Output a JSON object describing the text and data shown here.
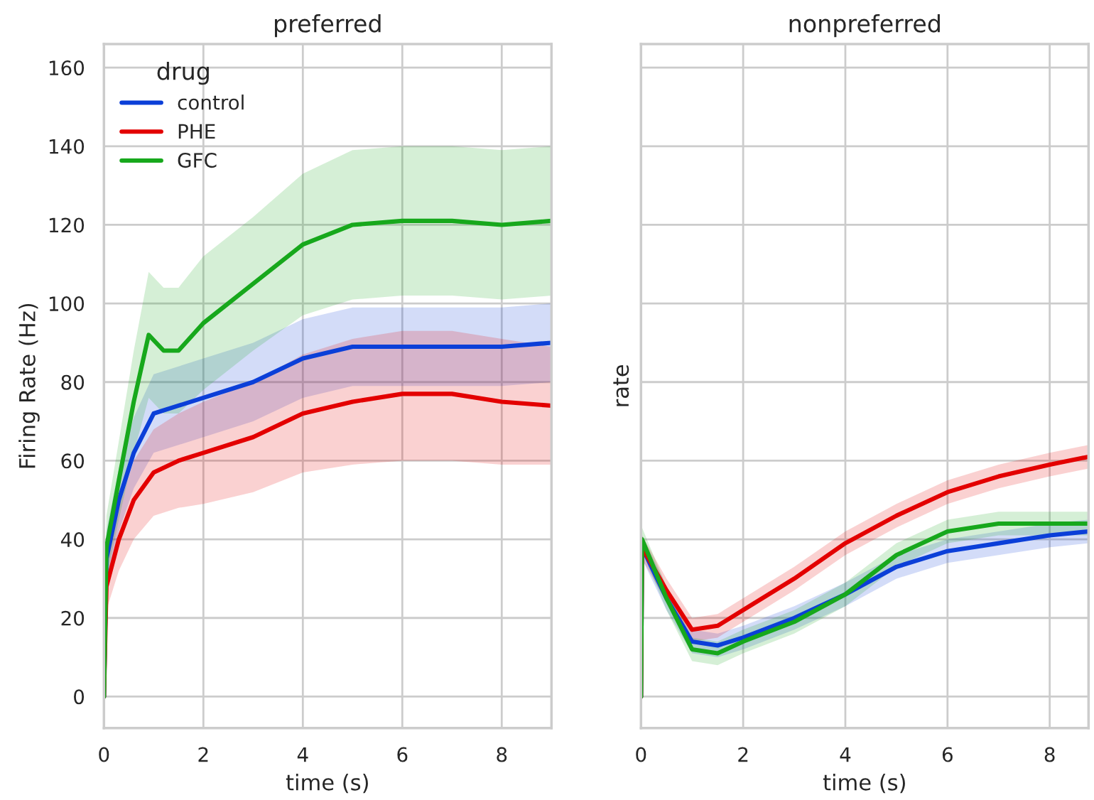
{
  "chart_data": [
    {
      "type": "line",
      "title": "preferred",
      "xlabel": "time (s)",
      "ylabel": "Firing Rate (Hz)",
      "legend_title": "drug",
      "legend": "top left",
      "grid": true,
      "xlim": [
        0,
        9
      ],
      "xticks": [
        0,
        2,
        4,
        6,
        8
      ],
      "ylim": [
        -8,
        166
      ],
      "yticks": [
        0,
        20,
        40,
        60,
        80,
        100,
        120,
        140,
        160
      ],
      "series": [
        {
          "name": "control",
          "color": "#0b3fd8",
          "x": [
            0,
            0.05,
            0.3,
            0.6,
            1,
            1.5,
            2,
            3,
            4,
            5,
            6,
            7,
            8,
            9
          ],
          "values": [
            0,
            35,
            50,
            62,
            72,
            74,
            76,
            80,
            86,
            89,
            89,
            89,
            89,
            90
          ],
          "lower": [
            0,
            28,
            42,
            53,
            62,
            64,
            66,
            70,
            76,
            79,
            79,
            79,
            79,
            80
          ],
          "upper": [
            0,
            42,
            58,
            71,
            82,
            84,
            86,
            90,
            96,
            99,
            99,
            99,
            99,
            100
          ]
        },
        {
          "name": "PHE",
          "color": "#e30000",
          "x": [
            0,
            0.05,
            0.3,
            0.6,
            1,
            1.5,
            2,
            3,
            4,
            5,
            6,
            7,
            8,
            9
          ],
          "values": [
            0,
            28,
            40,
            50,
            57,
            60,
            62,
            66,
            72,
            75,
            77,
            77,
            75,
            74
          ],
          "lower": [
            0,
            22,
            32,
            40,
            46,
            48,
            49,
            52,
            57,
            59,
            60,
            60,
            59,
            59
          ],
          "upper": [
            0,
            34,
            48,
            60,
            68,
            72,
            75,
            80,
            87,
            91,
            93,
            93,
            91,
            89
          ]
        },
        {
          "name": "GFC",
          "color": "#17a81c",
          "x": [
            0,
            0.05,
            0.3,
            0.6,
            0.9,
            1.2,
            1.5,
            2,
            3,
            4,
            5,
            6,
            7,
            8,
            9
          ],
          "values": [
            0,
            38,
            55,
            75,
            92,
            88,
            88,
            95,
            105,
            115,
            120,
            121,
            121,
            120,
            121
          ],
          "lower": [
            0,
            30,
            45,
            62,
            76,
            72,
            72,
            78,
            88,
            97,
            101,
            102,
            102,
            101,
            102
          ],
          "upper": [
            0,
            46,
            65,
            88,
            108,
            104,
            104,
            112,
            122,
            133,
            139,
            140,
            140,
            139,
            140
          ]
        }
      ]
    },
    {
      "type": "line",
      "title": "nonpreferred",
      "xlabel": "time (s)",
      "ylabel": "rate",
      "tick_labels": "x",
      "grid": true,
      "xlim": [
        0,
        8.76
      ],
      "xticks": [
        0,
        2,
        4,
        6,
        8
      ],
      "ylim": [
        -8,
        166
      ],
      "yticks": [
        {
          "value": 0,
          "label": null
        },
        {
          "value": 20,
          "label": null
        },
        {
          "value": 40,
          "label": null
        },
        {
          "value": 60,
          "label": null
        },
        {
          "value": 80,
          "label": null
        },
        {
          "value": 100,
          "label": null
        },
        {
          "value": 120,
          "label": null
        },
        {
          "value": 140,
          "label": null
        },
        {
          "value": 160,
          "label": null
        }
      ],
      "series": [
        {
          "color": "#0b3fd8",
          "x": [
            0,
            0.02,
            0.5,
            1,
            1.5,
            2,
            3,
            4,
            5,
            6,
            7,
            8,
            8.76
          ],
          "values": [
            0,
            38,
            25,
            14,
            13,
            15,
            20,
            26,
            33,
            37,
            39,
            41,
            42
          ],
          "lower": [
            0,
            35,
            22,
            11,
            10,
            12,
            17,
            23,
            30,
            34,
            36,
            38,
            39
          ],
          "upper": [
            0,
            41,
            28,
            17,
            16,
            18,
            23,
            29,
            36,
            40,
            42,
            44,
            45
          ]
        },
        {
          "color": "#e30000",
          "x": [
            0,
            0.02,
            0.5,
            1,
            1.5,
            2,
            3,
            4,
            5,
            6,
            7,
            8,
            8.76
          ],
          "values": [
            0,
            38,
            27,
            17,
            18,
            22,
            30,
            39,
            46,
            52,
            56,
            59,
            61
          ],
          "lower": [
            0,
            35,
            24,
            14,
            15,
            19,
            27,
            36,
            43,
            49,
            53,
            56,
            58
          ],
          "upper": [
            0,
            41,
            30,
            20,
            21,
            25,
            33,
            42,
            49,
            55,
            59,
            62,
            64
          ]
        },
        {
          "color": "#17a81c",
          "x": [
            0,
            0.02,
            0.5,
            1,
            1.5,
            2,
            3,
            4,
            5,
            6,
            7,
            8,
            8.76
          ],
          "values": [
            0,
            40,
            25,
            12,
            11,
            14,
            19,
            26,
            36,
            42,
            44,
            44,
            44
          ],
          "lower": [
            0,
            37,
            22,
            9,
            8,
            11,
            16,
            23,
            33,
            39,
            41,
            41,
            41
          ],
          "upper": [
            0,
            43,
            28,
            15,
            14,
            17,
            22,
            29,
            39,
            45,
            47,
            47,
            47
          ]
        }
      ]
    }
  ]
}
